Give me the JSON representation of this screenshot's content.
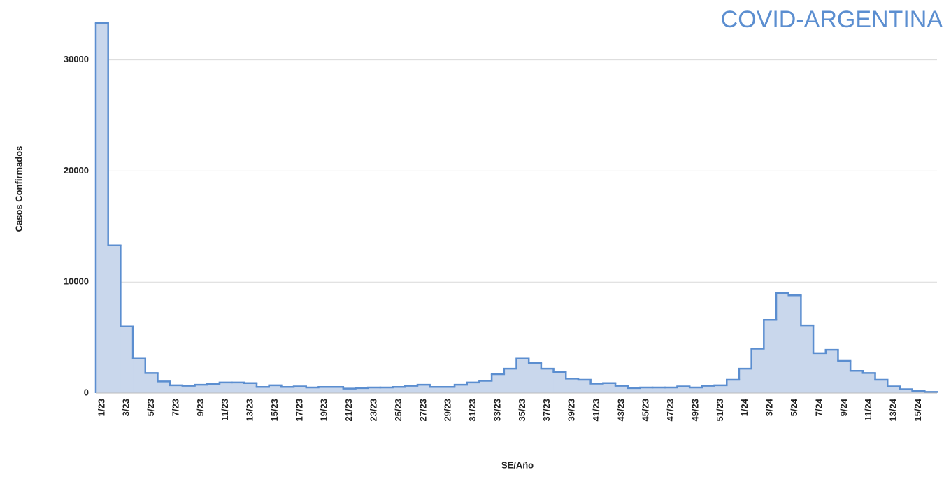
{
  "chart_data": {
    "type": "step-area",
    "title": "COVID-ARGENTINA",
    "x_label": "SE/Año",
    "y_label": "Casos Confirmados",
    "categories": [
      "1/23",
      null,
      "3/23",
      null,
      "5/23",
      null,
      "7/23",
      null,
      "9/23",
      null,
      "11/23",
      null,
      "13/23",
      null,
      "15/23",
      null,
      "17/23",
      null,
      "19/23",
      null,
      "21/23",
      null,
      "23/23",
      null,
      "25/23",
      null,
      "27/23",
      null,
      "29/23",
      null,
      "31/23",
      null,
      "33/23",
      null,
      "35/23",
      null,
      "37/23",
      null,
      "39/23",
      null,
      "41/23",
      null,
      "43/23",
      null,
      "45/23",
      null,
      "47/23",
      null,
      "49/23",
      null,
      "51/23",
      null,
      "1/24",
      null,
      "3/24",
      null,
      "5/24",
      null,
      "7/24",
      null,
      "9/24",
      null,
      "11/24",
      null,
      "13/24",
      null,
      "15/24",
      null
    ],
    "values": [
      33300,
      13300,
      6000,
      3100,
      1800,
      1050,
      700,
      650,
      750,
      800,
      950,
      950,
      900,
      550,
      700,
      550,
      600,
      500,
      550,
      550,
      400,
      450,
      500,
      500,
      550,
      650,
      750,
      550,
      550,
      750,
      950,
      1100,
      1700,
      2200,
      3100,
      2700,
      2200,
      1900,
      1300,
      1200,
      850,
      900,
      650,
      450,
      500,
      500,
      500,
      600,
      500,
      650,
      700,
      1200,
      2200,
      4000,
      6600,
      9000,
      8800,
      6100,
      3600,
      3900,
      2900,
      2000,
      1800,
      1200,
      600,
      350,
      200,
      100
    ],
    "color": "#5b8ed0",
    "fill": "#c9d7ec",
    "ylim": [
      0,
      33500
    ],
    "yticks": [
      0,
      10000,
      20000,
      30000
    ],
    "grid": true
  }
}
